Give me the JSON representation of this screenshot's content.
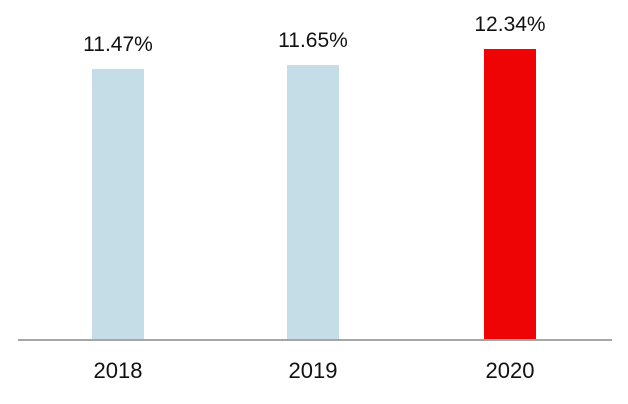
{
  "chart_data": {
    "type": "bar",
    "categories": [
      "2018",
      "2019",
      "2020"
    ],
    "values": [
      11.47,
      11.65,
      12.34
    ],
    "labels": [
      "11.47%",
      "11.65%",
      "12.34%"
    ],
    "colors": [
      "#c5dde7",
      "#c5dde7",
      "#ee0404"
    ],
    "ylim": [
      0,
      14.4
    ],
    "grid": false,
    "legend": false,
    "axis_line_color": "#a6a6a6",
    "label_color": "#111111",
    "background_color": "#ffffff"
  }
}
